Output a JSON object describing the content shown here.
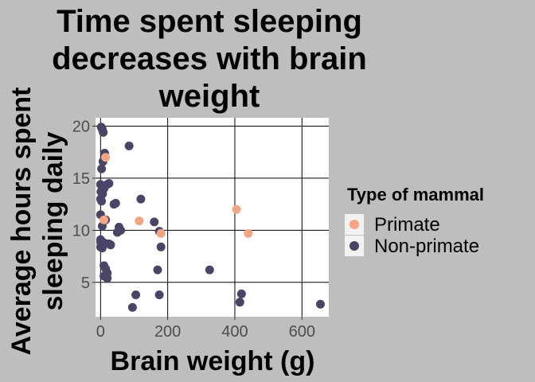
{
  "chart_data": {
    "type": "scatter",
    "title": "Time spent sleeping decreases with brain weight",
    "xlabel": "Brain weight (g)",
    "ylabel": "Average hours spent sleeping daily",
    "xlim": [
      -15,
      680
    ],
    "ylim": [
      1.7,
      20.8
    ],
    "xticks": [
      0,
      200,
      400,
      600
    ],
    "yticks": [
      5,
      10,
      15,
      20
    ],
    "grid": true,
    "legend": {
      "title": "Type of mammal",
      "position": "right"
    },
    "series": [
      {
        "name": "Primate",
        "color": "#f4a582",
        "points": [
          [
            15,
            17.0
          ],
          [
            10,
            11.0
          ],
          [
            115,
            10.9
          ],
          [
            180,
            9.7
          ],
          [
            405,
            12.0
          ],
          [
            440,
            9.7
          ]
        ]
      },
      {
        "name": "Non-primate",
        "color": "#4a4566",
        "points": [
          [
            2,
            19.9
          ],
          [
            5,
            19.7
          ],
          [
            8,
            19.4
          ],
          [
            12,
            17.4
          ],
          [
            7,
            16.6
          ],
          [
            3,
            15.9
          ],
          [
            0,
            14.4
          ],
          [
            4,
            14.2
          ],
          [
            10,
            14.0
          ],
          [
            20,
            14.4
          ],
          [
            25,
            14.5
          ],
          [
            1,
            13.7
          ],
          [
            6,
            13.5
          ],
          [
            0,
            13.0
          ],
          [
            3,
            12.8
          ],
          [
            40,
            12.5
          ],
          [
            45,
            12.6
          ],
          [
            120,
            13.0
          ],
          [
            85,
            18.1
          ],
          [
            0,
            11.5
          ],
          [
            15,
            11.0
          ],
          [
            5,
            10.4
          ],
          [
            55,
            10.3
          ],
          [
            60,
            10.0
          ],
          [
            50,
            9.8
          ],
          [
            160,
            10.8
          ],
          [
            175,
            9.9
          ],
          [
            0,
            9.1
          ],
          [
            0,
            8.9
          ],
          [
            10,
            8.8
          ],
          [
            25,
            8.7
          ],
          [
            30,
            8.6
          ],
          [
            0,
            8.4
          ],
          [
            5,
            8.3
          ],
          [
            180,
            8.4
          ],
          [
            10,
            6.6
          ],
          [
            15,
            6.3
          ],
          [
            20,
            5.9
          ],
          [
            10,
            5.6
          ],
          [
            20,
            5.4
          ],
          [
            170,
            6.2
          ],
          [
            325,
            6.2
          ],
          [
            105,
            3.8
          ],
          [
            175,
            3.8
          ],
          [
            420,
            3.9
          ],
          [
            415,
            3.1
          ],
          [
            95,
            2.6
          ],
          [
            655,
            2.9
          ]
        ]
      }
    ]
  }
}
